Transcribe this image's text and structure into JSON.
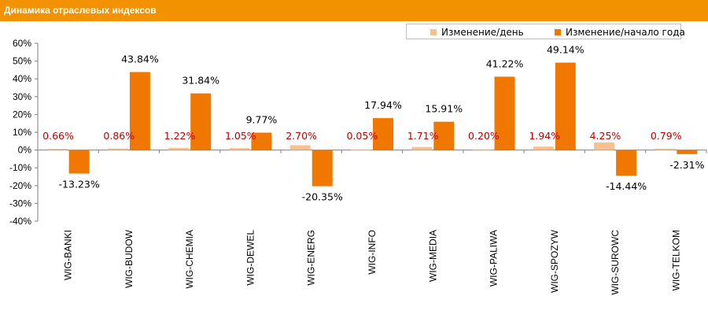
{
  "header": {
    "title": "Динамика отраслевых индексов"
  },
  "colors": {
    "title_bar": "#f39200",
    "daily": "#fac090",
    "ytd": "#f07800",
    "daily_label": "#c00000",
    "ytd_label": "#000000",
    "axis": "#7f7f7f"
  },
  "legend": {
    "daily_label": "Изменение/день",
    "ytd_label": "Изменение/начало года",
    "position": "top-right"
  },
  "chart_data": {
    "type": "bar",
    "title": "Динамика отраслевых индексов",
    "categories": [
      "WIG-BANKI",
      "WIG-BUDOW",
      "WIG-CHEMIA",
      "WIG-DEWEL",
      "WIG-ENERG",
      "WIG-INFO",
      "WIG-MEDIA",
      "WIG-PALIWA",
      "WIG-SPOZYW",
      "WIG-SUROWC",
      "WIG-TELKOM"
    ],
    "series": [
      {
        "name": "Изменение/день",
        "values": [
          0.66,
          0.86,
          1.22,
          1.05,
          2.7,
          0.05,
          1.71,
          0.2,
          1.94,
          4.25,
          0.79
        ],
        "labels": [
          "0.66%",
          "0.86%",
          "1.22%",
          "1.05%",
          "2.70%",
          "0.05%",
          "1.71%",
          "0.20%",
          "1.94%",
          "4.25%",
          "0.79%"
        ]
      },
      {
        "name": "Изменение/начало года",
        "values": [
          -13.23,
          43.84,
          31.84,
          9.77,
          -20.35,
          17.94,
          15.91,
          41.22,
          49.14,
          -14.44,
          -2.31
        ],
        "labels": [
          "-13.23%",
          "43.84%",
          "31.84%",
          "9.77%",
          "-20.35%",
          "17.94%",
          "15.91%",
          "41.22%",
          "49.14%",
          "-14.44%",
          "-2.31%"
        ]
      }
    ],
    "ylim": [
      -40,
      60
    ],
    "yticks": [
      60,
      50,
      40,
      30,
      20,
      10,
      0,
      -10,
      -20,
      -30,
      -40
    ],
    "ytick_labels": [
      "60%",
      "50%",
      "40%",
      "30%",
      "20%",
      "10%",
      "0%",
      "-10%",
      "-20%",
      "-30%",
      "-40%"
    ],
    "grid": false,
    "xlabel": "",
    "ylabel": ""
  }
}
